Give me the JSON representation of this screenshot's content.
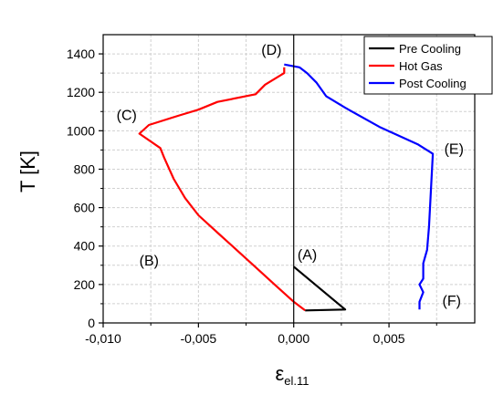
{
  "chart_data": {
    "type": "line",
    "xlabel_main": "ε",
    "xlabel_sub": "el.11",
    "ylabel": "T [K]",
    "xlim": [
      -0.01,
      0.0095
    ],
    "ylim": [
      0,
      1500
    ],
    "x_ticks": [
      -0.01,
      -0.005,
      0.0,
      0.005
    ],
    "x_tick_labels": [
      "-0,010",
      "-0,005",
      "0,000",
      "0,005"
    ],
    "y_ticks": [
      0,
      200,
      400,
      600,
      800,
      1000,
      1200,
      1400
    ],
    "y_tick_labels": [
      "0",
      "200",
      "400",
      "600",
      "800",
      "1000",
      "1200",
      "1400"
    ],
    "grid": true,
    "legend_position": "top-right",
    "series": [
      {
        "name": "Pre Cooling",
        "color": "#000000",
        "points": [
          [
            0.0,
            293
          ],
          [
            0.0027,
            70
          ],
          [
            0.0006,
            65
          ]
        ]
      },
      {
        "name": "Hot Gas",
        "color": "#ff0000",
        "points": [
          [
            0.0006,
            65
          ],
          [
            0.0,
            110
          ],
          [
            -0.001,
            200
          ],
          [
            -0.002,
            290
          ],
          [
            -0.003,
            380
          ],
          [
            -0.004,
            470
          ],
          [
            -0.005,
            560
          ],
          [
            -0.0057,
            650
          ],
          [
            -0.0063,
            750
          ],
          [
            -0.0068,
            860
          ],
          [
            -0.007,
            910
          ],
          [
            -0.0081,
            985
          ],
          [
            -0.0076,
            1030
          ],
          [
            -0.006,
            1080
          ],
          [
            -0.005,
            1110
          ],
          [
            -0.004,
            1150
          ],
          [
            -0.002,
            1190
          ],
          [
            -0.0015,
            1240
          ],
          [
            -0.0005,
            1300
          ],
          [
            -0.0005,
            1330
          ]
        ]
      },
      {
        "name": "Post Cooling",
        "color": "#0000ff",
        "points": [
          [
            -0.0005,
            1345
          ],
          [
            0.0003,
            1330
          ],
          [
            0.0007,
            1300
          ],
          [
            0.0012,
            1250
          ],
          [
            0.0017,
            1180
          ],
          [
            0.0027,
            1120
          ],
          [
            0.0045,
            1020
          ],
          [
            0.0065,
            930
          ],
          [
            0.0073,
            880
          ],
          [
            0.0071,
            500
          ],
          [
            0.007,
            380
          ],
          [
            0.0068,
            310
          ],
          [
            0.0068,
            230
          ],
          [
            0.0066,
            200
          ],
          [
            0.0068,
            160
          ],
          [
            0.0066,
            110
          ],
          [
            0.0066,
            70
          ]
        ]
      }
    ],
    "annotations": [
      {
        "text": "(A)",
        "x": 0.0002,
        "y": 330
      },
      {
        "text": "(B)",
        "x": -0.0081,
        "y": 300
      },
      {
        "text": "(C)",
        "x": -0.0093,
        "y": 1055
      },
      {
        "text": "(D)",
        "x": -0.0017,
        "y": 1395
      },
      {
        "text": "(E)",
        "x": 0.0079,
        "y": 880
      },
      {
        "text": "(F)",
        "x": 0.0078,
        "y": 90
      }
    ]
  }
}
